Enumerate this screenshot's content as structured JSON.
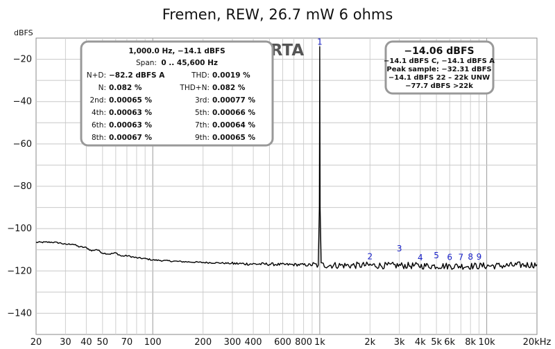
{
  "chart_data": {
    "type": "line",
    "title": "Fremen, REW, 26.7 mW 6 ohms",
    "ylabel": "dBFS",
    "watermark": "RTA",
    "x_scale": "log",
    "xlim": [
      20,
      20000
    ],
    "ylim": [
      -150,
      -10
    ],
    "grid": true,
    "x_ticks": [
      {
        "value": 20,
        "label": "20"
      },
      {
        "value": 30,
        "label": "30"
      },
      {
        "value": 40,
        "label": "40"
      },
      {
        "value": 50,
        "label": "50"
      },
      {
        "value": 70,
        "label": "70"
      },
      {
        "value": 100,
        "label": "100"
      },
      {
        "value": 200,
        "label": "200"
      },
      {
        "value": 300,
        "label": "300"
      },
      {
        "value": 400,
        "label": "400"
      },
      {
        "value": 600,
        "label": "600"
      },
      {
        "value": 800,
        "label": "800"
      },
      {
        "value": 1000,
        "label": "1k"
      },
      {
        "value": 2000,
        "label": "2k"
      },
      {
        "value": 3000,
        "label": "3k"
      },
      {
        "value": 4000,
        "label": "4k"
      },
      {
        "value": 5000,
        "label": "5k"
      },
      {
        "value": 6000,
        "label": "6k"
      },
      {
        "value": 8000,
        "label": "8k"
      },
      {
        "value": 10000,
        "label": "10k"
      },
      {
        "value": 20000,
        "label": "20kHz"
      }
    ],
    "y_ticks": [
      {
        "value": -20,
        "label": "−20"
      },
      {
        "value": -40,
        "label": "−40"
      },
      {
        "value": -60,
        "label": "−60"
      },
      {
        "value": -80,
        "label": "−80"
      },
      {
        "value": -100,
        "label": "−100"
      },
      {
        "value": -120,
        "label": "−120"
      },
      {
        "value": -140,
        "label": "−140"
      }
    ],
    "series": [
      {
        "color": "#000000",
        "points": [
          [
            20,
            -106.5
          ],
          [
            25,
            -106.4
          ],
          [
            28,
            -106.8
          ],
          [
            30,
            -107.5
          ],
          [
            33,
            -107.2
          ],
          [
            36,
            -108.5
          ],
          [
            40,
            -109.0
          ],
          [
            43,
            -110.5
          ],
          [
            46,
            -109.8
          ],
          [
            50,
            -111.5
          ],
          [
            55,
            -112.0
          ],
          [
            60,
            -111.5
          ],
          [
            65,
            -113.0
          ],
          [
            70,
            -112.8
          ],
          [
            80,
            -113.8
          ],
          [
            90,
            -114.2
          ],
          [
            100,
            -114.8
          ],
          [
            120,
            -115.2
          ],
          [
            150,
            -115.6
          ],
          [
            200,
            -116.0
          ],
          [
            250,
            -116.2
          ],
          [
            300,
            -116.5
          ],
          [
            400,
            -116.7
          ],
          [
            500,
            -116.8
          ],
          [
            600,
            -117.0
          ],
          [
            700,
            -117.0
          ],
          [
            800,
            -117.1
          ],
          [
            900,
            -117.2
          ],
          [
            980,
            -117.3
          ],
          [
            995,
            -90.0
          ],
          [
            1000,
            -14.1
          ],
          [
            1005,
            -90.0
          ],
          [
            1020,
            -117.2
          ],
          [
            1200,
            -117.3
          ],
          [
            1500,
            -117.4
          ],
          [
            2000,
            -117.3
          ],
          [
            2500,
            -117.5
          ],
          [
            3000,
            -117.4
          ],
          [
            4000,
            -117.6
          ],
          [
            5000,
            -117.6
          ],
          [
            6000,
            -117.7
          ],
          [
            8000,
            -117.7
          ],
          [
            10000,
            -117.6
          ],
          [
            13000,
            -117.5
          ],
          [
            16000,
            -117.2
          ],
          [
            20000,
            -117.0
          ]
        ]
      }
    ],
    "harmonic_markers": [
      {
        "label": "1",
        "x": 1000,
        "y": -14.1
      },
      {
        "label": "2",
        "x": 2000,
        "y": -114.5
      },
      {
        "label": "3",
        "x": 3000,
        "y": -110.8
      },
      {
        "label": "4",
        "x": 4000,
        "y": -115.0
      },
      {
        "label": "5",
        "x": 5000,
        "y": -114.0
      },
      {
        "label": "6",
        "x": 6000,
        "y": -114.8
      },
      {
        "label": "7",
        "x": 7000,
        "y": -114.8
      },
      {
        "label": "8",
        "x": 8000,
        "y": -114.7
      },
      {
        "label": "9",
        "x": 9000,
        "y": -114.6
      }
    ]
  },
  "distortion_box": {
    "header": "1,000.0 Hz, −14.1 dBFS",
    "span_label": "Span:",
    "span_value": "0 .. 45,600 Hz",
    "rows": [
      {
        "l_label": "N+D:",
        "l_value": "−82.2 dBFS A",
        "r_label": "THD:",
        "r_value": "0.0019 %"
      },
      {
        "l_label": "N:",
        "l_value": "0.082 %",
        "r_label": "THD+N:",
        "r_value": "0.082 %"
      },
      {
        "l_label": "2nd:",
        "l_value": "0.00065 %",
        "r_label": "3rd:",
        "r_value": "0.00077 %"
      },
      {
        "l_label": "4th:",
        "l_value": "0.00063 %",
        "r_label": "5th:",
        "r_value": "0.00066 %"
      },
      {
        "l_label": "6th:",
        "l_value": "0.00063 %",
        "r_label": "7th:",
        "r_value": "0.00064 %"
      },
      {
        "l_label": "8th:",
        "l_value": "0.00067 %",
        "r_label": "9th:",
        "r_value": "0.00065 %"
      }
    ]
  },
  "level_box": {
    "main": "−14.06 dBFS",
    "lines": [
      "−14.1 dBFS C, −14.1 dBFS A",
      "Peak sample: −32.31 dBFS",
      "−14.1 dBFS 22 – 22k UNW",
      "−77.7 dBFS >22k"
    ]
  }
}
